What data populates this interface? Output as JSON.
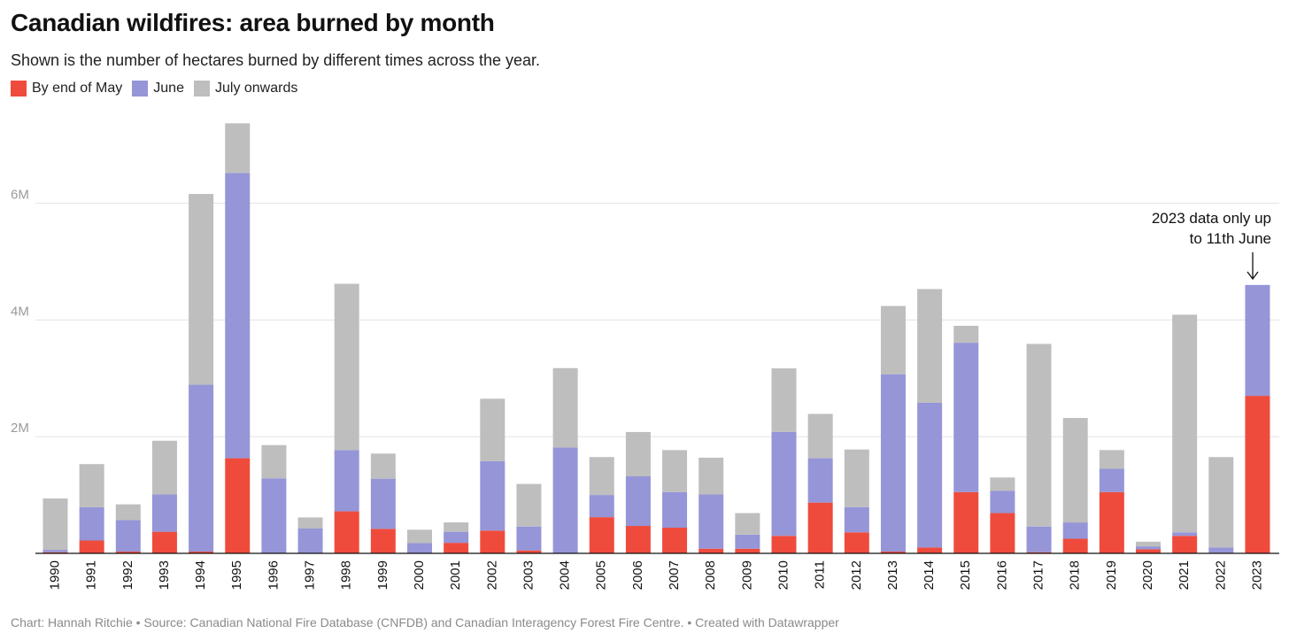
{
  "chart_data": {
    "type": "bar",
    "stacked": true,
    "title": "Canadian wildfires: area burned by month",
    "subtitle": "Shown is the number of hectares burned by different times across the year.",
    "categories": [
      "1990",
      "1991",
      "1992",
      "1993",
      "1994",
      "1995",
      "1996",
      "1997",
      "1998",
      "1999",
      "2000",
      "2001",
      "2002",
      "2003",
      "2004",
      "2005",
      "2006",
      "2007",
      "2008",
      "2009",
      "2010",
      "2011",
      "2012",
      "2013",
      "2014",
      "2015",
      "2016",
      "2017",
      "2018",
      "2019",
      "2020",
      "2021",
      "2022",
      "2023"
    ],
    "series": [
      {
        "name": "By end of May",
        "color": "#ef4b3c",
        "values": [
          20000,
          220000,
          30000,
          370000,
          30000,
          1630000,
          5000,
          5000,
          720000,
          420000,
          5000,
          180000,
          390000,
          50000,
          5000,
          620000,
          470000,
          440000,
          80000,
          80000,
          300000,
          870000,
          360000,
          30000,
          100000,
          1050000,
          690000,
          20000,
          250000,
          1050000,
          70000,
          300000,
          10000,
          2700000
        ]
      },
      {
        "name": "June",
        "color": "#9595d8",
        "values": [
          40000,
          570000,
          540000,
          640000,
          2860000,
          4890000,
          1280000,
          420000,
          1050000,
          860000,
          170000,
          190000,
          1190000,
          410000,
          1810000,
          380000,
          850000,
          610000,
          930000,
          240000,
          1780000,
          760000,
          430000,
          3040000,
          2480000,
          2560000,
          380000,
          440000,
          280000,
          400000,
          50000,
          60000,
          90000,
          1900000
        ]
      },
      {
        "name": "July onwards",
        "color": "#bebebe",
        "values": [
          880000,
          740000,
          270000,
          920000,
          3270000,
          850000,
          570000,
          190000,
          2850000,
          430000,
          230000,
          160000,
          1070000,
          730000,
          1360000,
          650000,
          760000,
          720000,
          630000,
          370000,
          1090000,
          760000,
          990000,
          1170000,
          1950000,
          290000,
          230000,
          3130000,
          1790000,
          320000,
          80000,
          3730000,
          1550000,
          0
        ]
      }
    ],
    "yticks": [
      2000000,
      4000000,
      6000000
    ],
    "ytick_labels": [
      "2M",
      "4M",
      "6M"
    ],
    "ylim": [
      0,
      7500000
    ],
    "xlabel": "",
    "ylabel": "",
    "grid": true,
    "legend_position": "top-left",
    "annotation": {
      "category": "2023",
      "lines": [
        "2023 data only up",
        "to 11th June"
      ]
    }
  },
  "footer": {
    "credit": "Chart: Hannah Ritchie • Source: Canadian National Fire Database (CNFDB) and Canadian Interagency Forest Fire Centre. • Created with Datawrapper"
  }
}
